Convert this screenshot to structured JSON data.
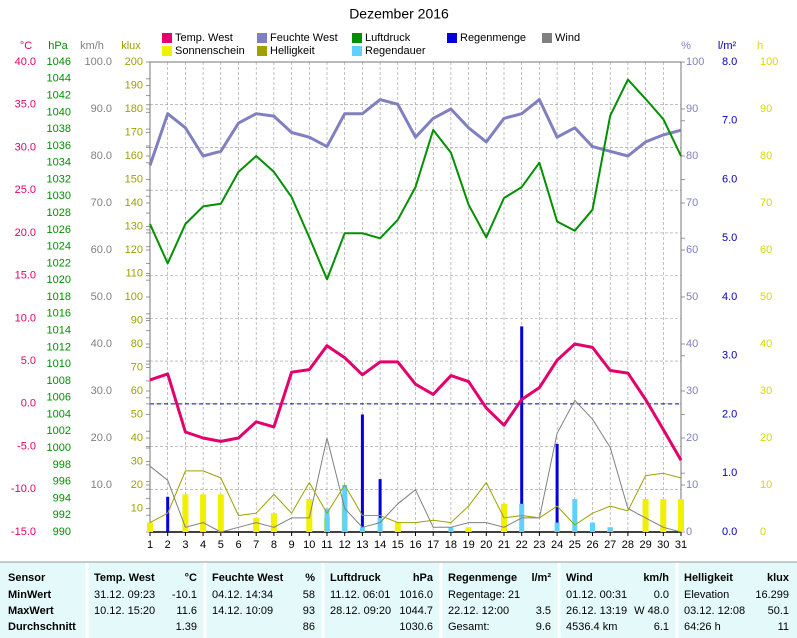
{
  "chart_data": {
    "type": "line",
    "title": "Dezember 2016",
    "categories": [
      "1",
      "2",
      "3",
      "4",
      "5",
      "6",
      "7",
      "8",
      "9",
      "10",
      "11",
      "12",
      "13",
      "14",
      "15",
      "16",
      "17",
      "18",
      "19",
      "20",
      "21",
      "22",
      "23",
      "24",
      "25",
      "26",
      "27",
      "28",
      "29",
      "30",
      "31"
    ],
    "grid": true,
    "zero_line": {
      "axis": "temp",
      "value": 0
    },
    "axes": [
      {
        "id": "temp",
        "label": "°C",
        "color": "#e4006c",
        "side": "left",
        "lim": [
          -15,
          40
        ],
        "ticks": [
          {
            "value": 40,
            "label": "40.0"
          },
          {
            "value": 35,
            "label": "35.0"
          },
          {
            "value": 30,
            "label": "30.0"
          },
          {
            "value": 25,
            "label": "25.0"
          },
          {
            "value": 20,
            "label": "20.0"
          },
          {
            "value": 15,
            "label": "15.0"
          },
          {
            "value": 10,
            "label": "10.0"
          },
          {
            "value": 5,
            "label": "5.0"
          },
          {
            "value": 0,
            "label": "0.0"
          },
          {
            "value": -5,
            "label": "-5.0"
          },
          {
            "value": -10,
            "label": "-10.0"
          },
          {
            "value": -15,
            "label": "-15.0"
          }
        ]
      },
      {
        "id": "hpa",
        "label": "hPa",
        "color": "#009000",
        "side": "left",
        "lim": [
          990,
          1046
        ],
        "ticks": [
          1046,
          1044,
          1042,
          1040,
          1038,
          1036,
          1034,
          1032,
          1030,
          1028,
          1026,
          1024,
          1022,
          1020,
          1018,
          1016,
          1014,
          1012,
          1010,
          1008,
          1006,
          1004,
          1002,
          1000,
          998,
          996,
          994,
          992,
          990
        ]
      },
      {
        "id": "kmh",
        "label": "km/h",
        "color": "#808080",
        "side": "left",
        "lim": [
          0,
          100
        ],
        "ticks": [
          {
            "value": 100,
            "label": "100.0"
          },
          {
            "value": 90,
            "label": "90.0"
          },
          {
            "value": 80,
            "label": "80.0"
          },
          {
            "value": 70,
            "label": "70.0"
          },
          {
            "value": 60,
            "label": "60.0"
          },
          {
            "value": 50,
            "label": "50.0"
          },
          {
            "value": 40,
            "label": "40.0"
          },
          {
            "value": 30,
            "label": "30.0"
          },
          {
            "value": 20,
            "label": "20.0"
          },
          {
            "value": 10,
            "label": "10.0"
          }
        ]
      },
      {
        "id": "klux",
        "label": "klux",
        "color": "#a0a000",
        "side": "left",
        "lim": [
          0,
          200
        ],
        "ticks": [
          200,
          190,
          180,
          170,
          160,
          150,
          140,
          130,
          120,
          110,
          100,
          90,
          80,
          70,
          60,
          50,
          40,
          30,
          20,
          10
        ]
      },
      {
        "id": "pct",
        "label": "%",
        "color": "#8080c0",
        "side": "right",
        "lim": [
          0,
          100
        ],
        "ticks": [
          100,
          90,
          80,
          70,
          60,
          50,
          40,
          30,
          20,
          10,
          0
        ]
      },
      {
        "id": "lm2",
        "label": "l/m²",
        "color": "#0000c0",
        "side": "right",
        "lim": [
          0,
          8
        ],
        "ticks": [
          {
            "value": 8,
            "label": "8.0"
          },
          {
            "value": 7,
            "label": "7.0"
          },
          {
            "value": 6,
            "label": "6.0"
          },
          {
            "value": 5,
            "label": "5.0"
          },
          {
            "value": 4,
            "label": "4.0"
          },
          {
            "value": 3,
            "label": "3.0"
          },
          {
            "value": 2,
            "label": "2.0"
          },
          {
            "value": 1,
            "label": "1.0"
          },
          {
            "value": 0,
            "label": "0.0"
          }
        ]
      },
      {
        "id": "h",
        "label": "h",
        "color": "#d8d800",
        "side": "right",
        "lim": [
          0,
          100
        ],
        "ticks": [
          100,
          90,
          80,
          70,
          60,
          50,
          40,
          30,
          20,
          10,
          0
        ]
      }
    ],
    "series": [
      {
        "name": "Temp. West",
        "color": "#e4006c",
        "type": "line",
        "axis": "temp",
        "values": [
          2.8,
          3.5,
          -3.3,
          -4.0,
          -4.4,
          -4.0,
          -2.1,
          -2.7,
          3.7,
          4.0,
          6.8,
          5.4,
          3.4,
          4.9,
          4.9,
          2.3,
          1.1,
          3.3,
          2.6,
          -0.5,
          -2.5,
          0.5,
          1.9,
          5.1,
          7.0,
          6.6,
          3.9,
          3.6,
          0.5,
          -3.0,
          -6.6
        ]
      },
      {
        "name": "Feuchte West",
        "color": "#8080c0",
        "type": "line",
        "axis": "pct",
        "values": [
          78,
          89,
          86,
          80,
          81,
          87,
          89,
          88.5,
          85,
          84,
          82,
          89,
          89,
          92,
          91,
          84,
          88,
          90,
          86,
          83,
          88,
          89,
          92,
          84,
          86,
          82,
          81,
          80,
          83,
          84.5,
          85.5
        ]
      },
      {
        "name": "Luftdruck",
        "color": "#009000",
        "type": "line",
        "axis": "hpa",
        "values": [
          1026.7,
          1022.0,
          1026.7,
          1028.8,
          1029.1,
          1032.9,
          1034.8,
          1032.9,
          1029.9,
          1025.1,
          1020.1,
          1025.6,
          1025.6,
          1025.0,
          1027.2,
          1031.1,
          1037.9,
          1035.2,
          1029.0,
          1025.1,
          1029.8,
          1031.1,
          1034.0,
          1027.0,
          1025.9,
          1028.4,
          1039.6,
          1043.9,
          1041.6,
          1039.2,
          1034.8
        ]
      },
      {
        "name": "Regenmenge",
        "color": "#0000e0",
        "type": "bar",
        "axis": "lm2",
        "values": [
          null,
          0.6,
          null,
          null,
          null,
          null,
          null,
          null,
          null,
          null,
          0.2,
          0.6,
          2.0,
          0.9,
          null,
          null,
          null,
          null,
          null,
          null,
          null,
          3.5,
          null,
          1.5,
          0.3,
          null,
          null,
          null,
          null,
          null,
          null
        ]
      },
      {
        "name": "Wind",
        "color": "#808080",
        "type": "line",
        "axis": "kmh",
        "values": [
          14,
          11,
          1,
          2,
          0,
          1,
          2,
          1,
          3,
          3,
          20,
          5,
          1,
          2,
          6,
          9,
          1,
          1,
          2,
          2,
          1,
          3,
          3,
          21,
          28,
          24,
          18,
          5,
          3,
          1,
          0
        ]
      },
      {
        "name": "Sonnenschein",
        "color": "#f0f000",
        "type": "bar",
        "axis": "h",
        "values": [
          2,
          null,
          8,
          8,
          8,
          null,
          3,
          4,
          null,
          7,
          3,
          8,
          null,
          null,
          2,
          null,
          null,
          null,
          1,
          null,
          6,
          null,
          null,
          null,
          null,
          null,
          1,
          null,
          7,
          7,
          7
        ]
      },
      {
        "name": "Helligkeit",
        "color": "#a0a000",
        "type": "line",
        "axis": "klux",
        "values": [
          4,
          8,
          26,
          26,
          23,
          7,
          8,
          16,
          8,
          21,
          8,
          20,
          7,
          7,
          4,
          4,
          5,
          4,
          11,
          21,
          6,
          7,
          6,
          11,
          3,
          8,
          11,
          9,
          24,
          25,
          23
        ]
      },
      {
        "name": "Regendauer",
        "color": "#60d0ff",
        "type": "bar",
        "axis": "h",
        "values": [
          null,
          null,
          null,
          null,
          null,
          null,
          null,
          null,
          null,
          null,
          5,
          10,
          1,
          3,
          null,
          null,
          null,
          1,
          null,
          null,
          null,
          6,
          null,
          2,
          7,
          2,
          1,
          null,
          null,
          null,
          null
        ]
      }
    ]
  },
  "stats": {
    "header": {
      "label": "Sensor",
      "cells": [
        {
          "left": "Temp. West",
          "right": "°C"
        },
        {
          "left": "Feuchte West",
          "right": "%"
        },
        {
          "left": "Luftdruck",
          "right": "hPa"
        },
        {
          "left": "Regenmenge",
          "right": "l/m²"
        },
        {
          "left": "Wind",
          "right": "km/h"
        },
        {
          "left": "Helligkeit",
          "right": "klux"
        }
      ]
    },
    "rows": [
      {
        "label": "MinWert",
        "cells": [
          {
            "left": "31.12.  09:23",
            "right": "-10.1"
          },
          {
            "left": "04.12.  14:34",
            "right": "58"
          },
          {
            "left": "11.12.  06:01",
            "right": "1016.0"
          },
          {
            "left": "Regentage: 21"
          },
          {
            "left": "01.12.  00:31",
            "right": "0.0"
          },
          {
            "left": "Elevation",
            "right": "16.299"
          }
        ]
      },
      {
        "label": "MaxWert",
        "cells": [
          {
            "left": "10.12.  15:20",
            "right": "11.6"
          },
          {
            "left": "14.12.  10:09",
            "right": "93"
          },
          {
            "left": "28.12.  09:20",
            "right": "1044.7"
          },
          {
            "left": "22.12.  12:00",
            "right": "3.5"
          },
          {
            "left": "26.12.  13:19",
            "right": "W 48.0"
          },
          {
            "left": "03.12.  12:08",
            "right": "50.1"
          }
        ]
      },
      {
        "label": "Durchschnitt",
        "cells": [
          {
            "right": "1.39"
          },
          {
            "right": "86"
          },
          {
            "right": "1030.6"
          },
          {
            "left": "Gesamt:",
            "right": "9.6"
          },
          {
            "left": "4536.4 km",
            "right": "6.1"
          },
          {
            "left": "64:26 h",
            "right": "11"
          }
        ]
      }
    ]
  }
}
